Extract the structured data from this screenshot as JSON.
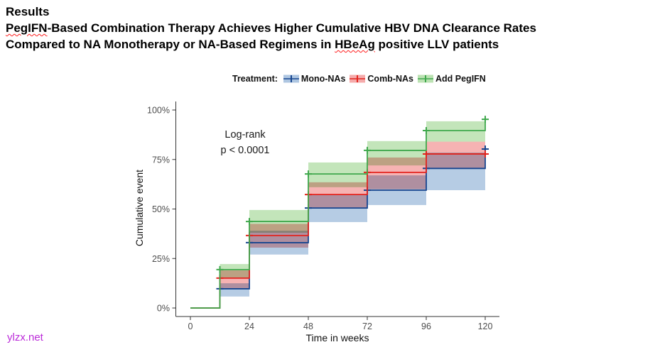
{
  "header": {
    "line1": "Results",
    "line2_wavy": "PegIFN",
    "line2_rest": "-Based Combination Therapy Achieves Higher Cumulative HBV DNA Clearance Rates",
    "line3_pre": "Compared to NA Monotherapy or NA-Based Regimens in ",
    "line3_wavy": "HBeAg",
    "line3_rest": " positive LLV patients"
  },
  "legend": {
    "label": "Treatment:"
  },
  "footer": {
    "watermark": "ylzx.net"
  },
  "chart_data": {
    "type": "step",
    "subtype": "cumulative-incidence-with-confidence-bands",
    "title": "",
    "xlabel": "Time in weeks",
    "ylabel": "Cumulative event",
    "x_ticks": [
      0,
      24,
      48,
      72,
      96,
      120
    ],
    "y_ticks": [
      {
        "v": 0,
        "label": "0%"
      },
      {
        "v": 25,
        "label": "25%"
      },
      {
        "v": 50,
        "label": "50%"
      },
      {
        "v": 75,
        "label": "75%"
      },
      {
        "v": 100,
        "label": "100%"
      }
    ],
    "xlim": [
      0,
      126
    ],
    "ylim": [
      0,
      100
    ],
    "grid": false,
    "legend_position": "top",
    "annotation": {
      "line1": "Log-rank",
      "line2": "p < 0.0001"
    },
    "axis_color": "#333333",
    "tick_label_color": "#4d4d4d",
    "series": [
      {
        "name": "Mono-NAs",
        "line_color": "#17458f",
        "band_color": "#aec6e1",
        "steps": [
          [
            0,
            0
          ],
          [
            12,
            9.7
          ],
          [
            24,
            33
          ],
          [
            48,
            50.5
          ],
          [
            72,
            59.5
          ],
          [
            96,
            70.5
          ],
          [
            120,
            80.3
          ]
        ],
        "bands": [
          [
            12,
            24,
            5.8,
            12.5
          ],
          [
            24,
            48,
            27,
            39
          ],
          [
            48,
            72,
            43.4,
            57.5
          ],
          [
            72,
            96,
            52,
            67
          ],
          [
            96,
            120,
            59.5,
            78.5
          ]
        ],
        "censors": [
          [
            12,
            9.7
          ],
          [
            24,
            33
          ],
          [
            48,
            50.5
          ],
          [
            72,
            59.5
          ],
          [
            96,
            70.5
          ],
          [
            120,
            80.3
          ]
        ]
      },
      {
        "name": "Comb-NAs",
        "line_color": "#e2231d",
        "band_color": "#f5abab",
        "steps": [
          [
            0,
            0
          ],
          [
            12,
            15.1
          ],
          [
            24,
            36.6
          ],
          [
            48,
            57.3
          ],
          [
            72,
            68.5
          ],
          [
            96,
            77.8
          ],
          [
            120,
            77.8
          ]
        ],
        "bands": [
          [
            12,
            24,
            9.7,
            19
          ],
          [
            24,
            48,
            30.5,
            42.5
          ],
          [
            48,
            72,
            50.5,
            63.5
          ],
          [
            72,
            96,
            60,
            76
          ],
          [
            96,
            120,
            70.5,
            84
          ]
        ],
        "censors": [
          [
            12,
            15.1
          ],
          [
            24,
            36.6
          ],
          [
            48,
            57.3
          ],
          [
            72,
            68.5
          ],
          [
            96,
            77.8
          ],
          [
            120,
            77.8
          ]
        ]
      },
      {
        "name": "Add PegIFN",
        "line_color": "#3fa84c",
        "band_color": "#bce2b3",
        "steps": [
          [
            0,
            0
          ],
          [
            12,
            19.4
          ],
          [
            24,
            43.7
          ],
          [
            48,
            67.7
          ],
          [
            72,
            79.6
          ],
          [
            96,
            89.6
          ],
          [
            120,
            95.3
          ]
        ],
        "bands": [
          [
            12,
            24,
            15.4,
            22.2
          ],
          [
            24,
            48,
            38,
            49.5
          ],
          [
            48,
            72,
            61,
            73.5
          ],
          [
            72,
            96,
            72,
            84.3
          ],
          [
            96,
            120,
            84,
            94.3
          ]
        ],
        "censors": [
          [
            12,
            19.4
          ],
          [
            24,
            43.7
          ],
          [
            48,
            67.7
          ],
          [
            72,
            79.6
          ],
          [
            96,
            89.6
          ],
          [
            120,
            95.3
          ]
        ]
      }
    ]
  }
}
